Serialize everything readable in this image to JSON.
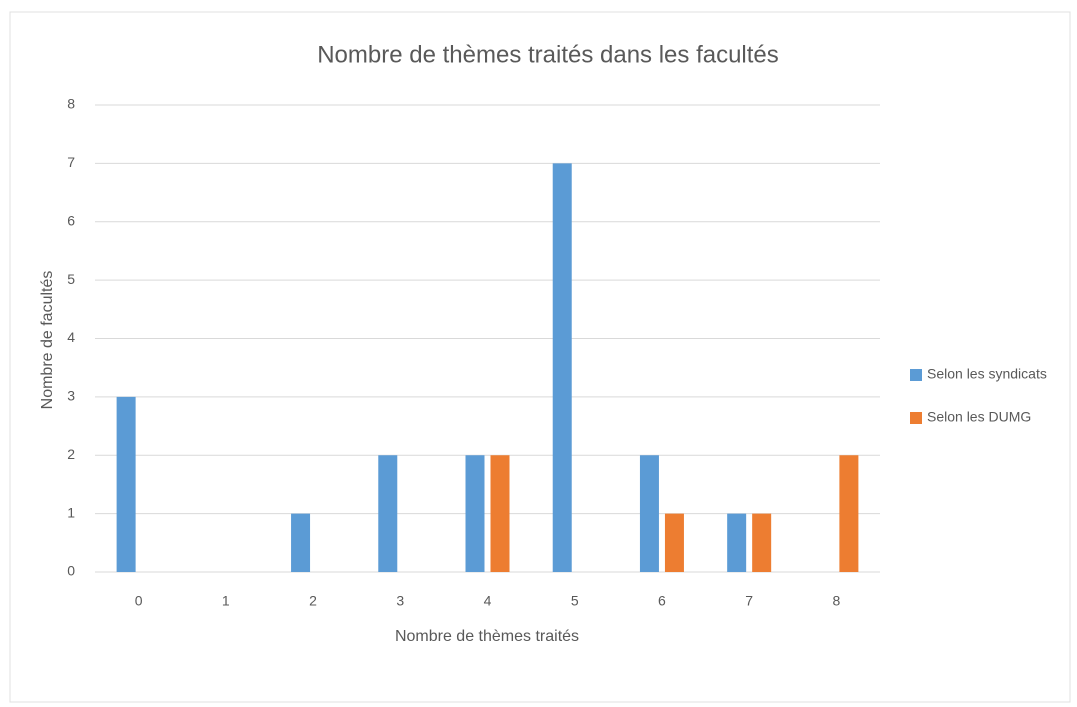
{
  "chart_data": {
    "type": "bar",
    "title": "Nombre de thèmes traités dans les facultés",
    "x_label": "Nombre de thèmes traités",
    "y_label": "Nombre de facultés",
    "categories": [
      "0",
      "1",
      "2",
      "3",
      "4",
      "5",
      "6",
      "7",
      "8"
    ],
    "series": [
      {
        "name": "Selon les syndicats",
        "color": "#5b9bd5",
        "values": [
          3,
          0,
          1,
          2,
          2,
          7,
          2,
          1,
          0
        ]
      },
      {
        "name": "Selon les DUMG",
        "color": "#ed7d31",
        "values": [
          0,
          0,
          0,
          0,
          2,
          0,
          1,
          1,
          2
        ]
      }
    ],
    "ylim": [
      0,
      8
    ],
    "yticks": [
      0,
      1,
      2,
      3,
      4,
      5,
      6,
      7,
      8
    ],
    "grid": true,
    "legend": "right"
  }
}
